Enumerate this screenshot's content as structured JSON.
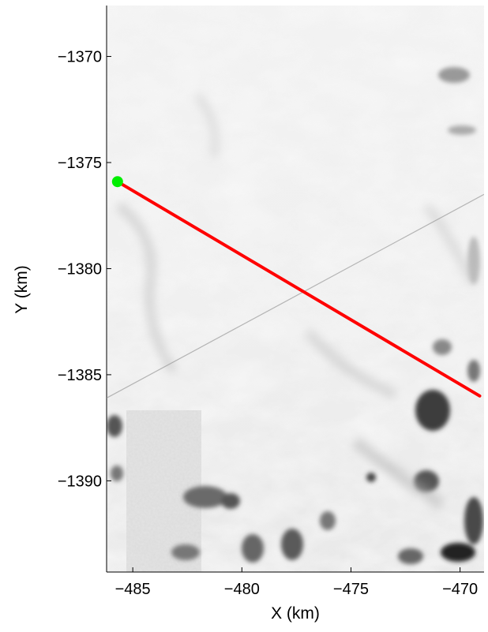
{
  "chart_data": {
    "type": "map",
    "xlabel": "X (km)",
    "ylabel": "Y (km)",
    "xlim": [
      -486.2,
      -468.9
    ],
    "ylim": [
      -1394.3,
      -1367.6
    ],
    "x_ticks": [
      -485,
      -480,
      -475,
      -470
    ],
    "y_ticks": [
      -1370,
      -1375,
      -1380,
      -1385,
      -1390
    ],
    "x_tick_labels": [
      "−485",
      "−480",
      "−475",
      "−470"
    ],
    "y_tick_labels": [
      "−1370",
      "−1375",
      "−1380",
      "−1385",
      "−1390"
    ],
    "background": "grayscale satellite imagery of ice sheet surface",
    "track": {
      "color": "#ff0000",
      "points": [
        [
          -485.7,
          -1375.9
        ],
        [
          -469.1,
          -1386.0
        ]
      ]
    },
    "start_marker": {
      "color": "#00ee00",
      "x": -485.7,
      "y": -1375.9
    },
    "faint_line": {
      "color": "#9a9a9a",
      "points": [
        [
          -486.2,
          -1386.1
        ],
        [
          -468.9,
          -1376.5
        ]
      ]
    }
  }
}
